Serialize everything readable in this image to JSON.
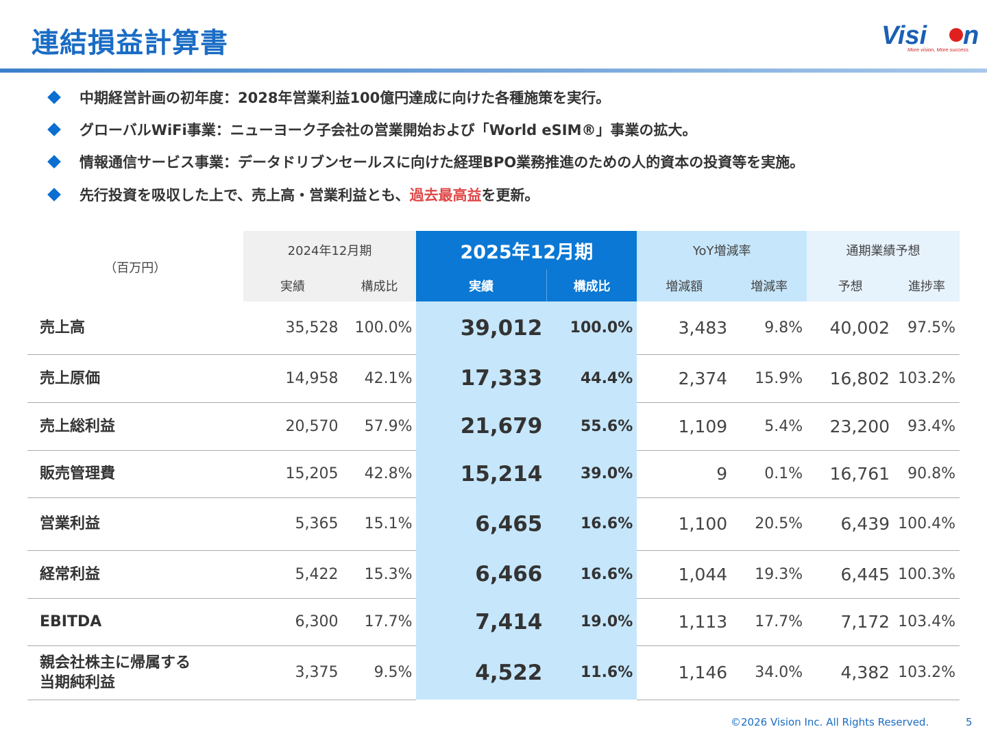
{
  "title": "連結損益計算書",
  "logo": {
    "text": "Vision",
    "tagline": "More vision, More success."
  },
  "bullets": [
    {
      "text": "中期経営計画の初年度：2028年営業利益100億円達成に向けた各種施策を実行。"
    },
    {
      "text": "グローバルWiFi事業：ニューヨーク子会社の営業開始および「World eSIM®」事業の拡大。"
    },
    {
      "text": "情報通信サービス事業：データドリブンセールスに向けた経理BPO業務推進のための人的資本の投資等を実施。"
    },
    {
      "pre": "先行投資を吸収した上で、売上高・営業利益とも、",
      "highlight": "過去最高益",
      "post": "を更新。"
    }
  ],
  "table": {
    "unit": "（百万円）",
    "groups": [
      "2024年12月期",
      "2025年12月期",
      "YoY増減率",
      "通期業績予想"
    ],
    "subheaders": [
      "実績",
      "構成比",
      "実績",
      "構成比",
      "増減額",
      "増減率",
      "予想",
      "進捗率"
    ],
    "rows": [
      {
        "name": "売上高",
        "v": [
          "35,528",
          "100.0%",
          "39,012",
          "100.0%",
          "3,483",
          "9.8%",
          "40,002",
          "97.5%"
        ]
      },
      {
        "name": "売上原価",
        "v": [
          "14,958",
          "42.1%",
          "17,333",
          "44.4%",
          "2,374",
          "15.9%",
          "16,802",
          "103.2%"
        ]
      },
      {
        "name": "売上総利益",
        "v": [
          "20,570",
          "57.9%",
          "21,679",
          "55.6%",
          "1,109",
          "5.4%",
          "23,200",
          "93.4%"
        ]
      },
      {
        "name": "販売管理費",
        "v": [
          "15,205",
          "42.8%",
          "15,214",
          "39.0%",
          "9",
          "0.1%",
          "16,761",
          "90.8%"
        ]
      },
      {
        "name": "営業利益",
        "v": [
          "5,365",
          "15.1%",
          "6,465",
          "16.6%",
          "1,100",
          "20.5%",
          "6,439",
          "100.4%"
        ]
      },
      {
        "name": "経常利益",
        "v": [
          "5,422",
          "15.3%",
          "6,466",
          "16.6%",
          "1,044",
          "19.3%",
          "6,445",
          "100.3%"
        ]
      },
      {
        "name": "EBITDA",
        "v": [
          "6,300",
          "17.7%",
          "7,414",
          "19.0%",
          "1,113",
          "17.7%",
          "7,172",
          "103.4%"
        ]
      },
      {
        "name": "親会社株主に帰属する\n当期純利益",
        "v": [
          "3,375",
          "9.5%",
          "4,522",
          "11.6%",
          "1,146",
          "34.0%",
          "4,382",
          "103.2%"
        ]
      }
    ]
  },
  "footer": {
    "copyright": "©2026 Vision Inc. All Rights Reserved.",
    "page": "5"
  },
  "colors": {
    "accent": "#1a6cc4",
    "highlight_header": "#0a78d4",
    "highlight_body": "#c6e6fb",
    "emphasis": "#e04848"
  }
}
